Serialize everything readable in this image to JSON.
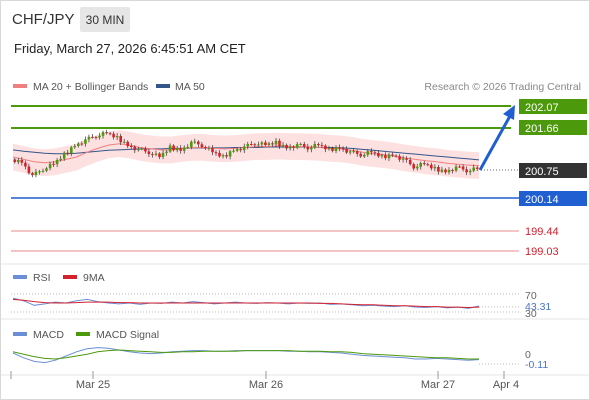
{
  "header": {
    "symbol": "CHF/JPY",
    "timeframe": "30 MIN",
    "datetime": "Friday, March 27, 2026 6:45:51 AM CET"
  },
  "legend": {
    "ma20_label": "MA 20 + Bollinger Bands",
    "ma50_label": "MA 50",
    "copyright": "Research © 2026 Trading Central"
  },
  "levels": {
    "r2": "202.07",
    "r1": "201.66",
    "last": "200.75",
    "s1": "200.14",
    "s2": "199.44",
    "s3": "199.03"
  },
  "rsi_panel": {
    "rsi_label": "RSI",
    "ma_label": "9MA",
    "level_70": "70",
    "value": "43.31",
    "level_30": "30"
  },
  "macd_panel": {
    "macd_label": "MACD",
    "signal_label": "MACD Signal",
    "zero": "0",
    "value": "-0.11"
  },
  "xaxis": {
    "labels": [
      "Mar 25",
      "Mar 26",
      "Mar 27",
      "Apr 4"
    ]
  },
  "colors": {
    "green": "#4c9a0c",
    "blue": "#1f5fd1",
    "red": "#d3212d",
    "dark": "#333333",
    "ma20": "#f08080",
    "ma50": "#34568b",
    "band": "#fde0e0",
    "rsi": "#6b8ed6",
    "macd": "#6b8ed6",
    "signal": "#4c9a0c"
  },
  "chart_data": {
    "type": "candlestick",
    "price_axis_range": [
      198.9,
      202.2
    ],
    "forecast_target": 202.07,
    "price": [
      200.95,
      200.9,
      200.6,
      200.75,
      200.85,
      201.05,
      201.25,
      201.35,
      201.45,
      201.5,
      201.4,
      201.25,
      201.15,
      201.1,
      201.0,
      201.2,
      201.15,
      201.3,
      201.25,
      201.1,
      201.0,
      201.15,
      201.2,
      201.3,
      201.25,
      201.3,
      201.2,
      201.25,
      201.2,
      201.25,
      201.15,
      201.2,
      201.1,
      201.05,
      201.1,
      201.0,
      201.05,
      200.95,
      200.8,
      200.85,
      200.75,
      200.7,
      200.78,
      200.72,
      200.75
    ],
    "ma20": [
      201.0,
      200.95,
      200.9,
      200.88,
      200.9,
      200.95,
      201.0,
      201.1,
      201.18,
      201.25,
      201.28,
      201.25,
      201.2,
      201.17,
      201.15,
      201.15,
      201.18,
      201.2,
      201.2,
      201.18,
      201.17,
      201.18,
      201.2,
      201.22,
      201.22,
      201.23,
      201.22,
      201.22,
      201.21,
      201.2,
      201.18,
      201.17,
      201.14,
      201.1,
      201.07,
      201.05,
      201.02,
      200.98,
      200.95,
      200.92,
      200.9,
      200.87,
      200.85,
      200.83,
      200.82
    ],
    "ma50": [
      201.15,
      201.12,
      201.1,
      201.08,
      201.07,
      201.07,
      201.08,
      201.1,
      201.12,
      201.14,
      201.15,
      201.16,
      201.17,
      201.17,
      201.17,
      201.18,
      201.18,
      201.19,
      201.19,
      201.19,
      201.19,
      201.2,
      201.2,
      201.2,
      201.21,
      201.21,
      201.21,
      201.21,
      201.21,
      201.2,
      201.2,
      201.19,
      201.18,
      201.16,
      201.14,
      201.12,
      201.1,
      201.08,
      201.06,
      201.04,
      201.02,
      201.0,
      200.98,
      200.96,
      200.94
    ],
    "rsi": [
      61,
      55,
      45,
      48,
      52,
      50,
      55,
      58,
      53,
      50,
      48,
      50,
      47,
      50,
      49,
      52,
      50,
      53,
      51,
      48,
      50,
      52,
      50,
      49,
      51,
      50,
      48,
      50,
      49,
      50,
      47,
      48,
      46,
      44,
      45,
      43,
      42,
      44,
      41,
      40,
      42,
      39,
      41,
      38,
      43.31
    ],
    "rsi_ma": [
      58,
      56,
      53,
      51,
      50,
      50,
      51,
      52,
      52,
      52,
      51,
      51,
      50,
      50,
      50,
      50,
      50,
      50,
      50,
      50,
      50,
      50,
      50,
      50,
      50,
      50,
      50,
      50,
      50,
      49,
      49,
      48,
      47,
      46,
      46,
      45,
      44,
      44,
      43,
      42,
      42,
      41,
      41,
      40,
      41
    ],
    "rsi_range": [
      0,
      100
    ],
    "macd": [
      0.0,
      -0.08,
      -0.14,
      -0.16,
      -0.12,
      -0.05,
      0.02,
      0.07,
      0.09,
      0.08,
      0.05,
      0.02,
      0.0,
      -0.01,
      0.0,
      0.02,
      0.03,
      0.04,
      0.04,
      0.03,
      0.03,
      0.04,
      0.04,
      0.04,
      0.04,
      0.04,
      0.03,
      0.03,
      0.02,
      0.02,
      0.01,
      0.0,
      -0.02,
      -0.04,
      -0.05,
      -0.06,
      -0.07,
      -0.08,
      -0.1,
      -0.1,
      -0.09,
      -0.1,
      -0.11,
      -0.12,
      -0.11
    ],
    "macd_signal": [
      0.02,
      -0.02,
      -0.06,
      -0.09,
      -0.1,
      -0.08,
      -0.05,
      -0.02,
      0.02,
      0.04,
      0.05,
      0.04,
      0.03,
      0.02,
      0.01,
      0.01,
      0.02,
      0.02,
      0.03,
      0.03,
      0.03,
      0.03,
      0.04,
      0.04,
      0.04,
      0.04,
      0.04,
      0.03,
      0.03,
      0.03,
      0.02,
      0.02,
      0.01,
      -0.01,
      -0.02,
      -0.03,
      -0.04,
      -0.05,
      -0.06,
      -0.07,
      -0.08,
      -0.08,
      -0.09,
      -0.1,
      -0.1
    ],
    "macd_range": [
      -0.25,
      0.25
    ]
  }
}
